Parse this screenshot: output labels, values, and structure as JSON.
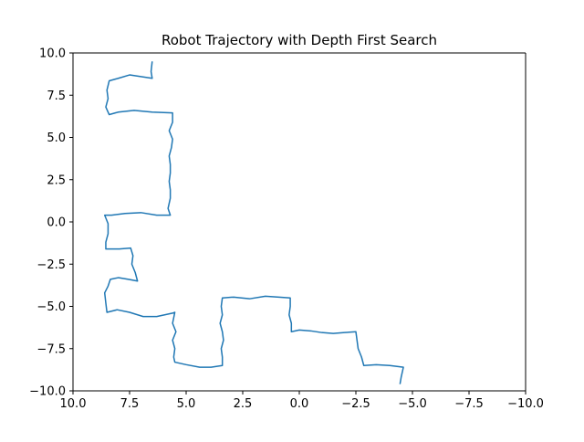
{
  "chart_data": {
    "type": "line",
    "title": "Robot Trajectory with Depth First Search",
    "xlabel": "",
    "ylabel": "",
    "xlim": [
      10.0,
      -10.0
    ],
    "ylim": [
      -10.0,
      10.0
    ],
    "xticks": [
      10.0,
      7.5,
      5.0,
      2.5,
      0.0,
      -2.5,
      -5.0,
      -7.5,
      -10.0
    ],
    "yticks": [
      10.0,
      7.5,
      5.0,
      2.5,
      0.0,
      -2.5,
      -5.0,
      -7.5,
      -10.0
    ],
    "xtick_labels": [
      "10.0",
      "7.5",
      "5.0",
      "2.5",
      "0.0",
      "−2.5",
      "−5.0",
      "−7.5",
      "−10.0"
    ],
    "ytick_labels": [
      "10.0",
      "7.5",
      "5.0",
      "2.5",
      "0.0",
      "−2.5",
      "−5.0",
      "−7.5",
      "−10.0"
    ],
    "grid": false,
    "series_color": "#1f77b4",
    "series": [
      {
        "points": [
          [
            6.5,
            9.5
          ],
          [
            6.55,
            8.9
          ],
          [
            6.5,
            8.5
          ],
          [
            7.0,
            8.6
          ],
          [
            7.5,
            8.7
          ],
          [
            8.0,
            8.5
          ],
          [
            8.4,
            8.35
          ],
          [
            8.5,
            7.8
          ],
          [
            8.45,
            7.3
          ],
          [
            8.55,
            6.8
          ],
          [
            8.4,
            6.35
          ],
          [
            8.0,
            6.5
          ],
          [
            7.3,
            6.6
          ],
          [
            6.5,
            6.5
          ],
          [
            5.6,
            6.45
          ],
          [
            5.6,
            5.9
          ],
          [
            5.75,
            5.4
          ],
          [
            5.6,
            4.9
          ],
          [
            5.65,
            4.4
          ],
          [
            5.75,
            3.9
          ],
          [
            5.7,
            3.4
          ],
          [
            5.7,
            2.9
          ],
          [
            5.75,
            2.4
          ],
          [
            5.7,
            1.9
          ],
          [
            5.7,
            1.4
          ],
          [
            5.8,
            0.8
          ],
          [
            5.7,
            0.4
          ],
          [
            6.3,
            0.4
          ],
          [
            7.0,
            0.55
          ],
          [
            7.7,
            0.5
          ],
          [
            8.3,
            0.4
          ],
          [
            8.6,
            0.4
          ],
          [
            8.45,
            -0.1
          ],
          [
            8.45,
            -0.7
          ],
          [
            8.55,
            -1.2
          ],
          [
            8.55,
            -1.6
          ],
          [
            7.95,
            -1.6
          ],
          [
            7.45,
            -1.55
          ],
          [
            7.35,
            -2.0
          ],
          [
            7.4,
            -2.5
          ],
          [
            7.25,
            -3.0
          ],
          [
            7.15,
            -3.5
          ],
          [
            7.55,
            -3.4
          ],
          [
            8.0,
            -3.3
          ],
          [
            8.35,
            -3.4
          ],
          [
            8.45,
            -3.8
          ],
          [
            8.6,
            -4.2
          ],
          [
            8.55,
            -4.8
          ],
          [
            8.5,
            -5.35
          ],
          [
            8.05,
            -5.2
          ],
          [
            7.5,
            -5.35
          ],
          [
            6.9,
            -5.6
          ],
          [
            6.3,
            -5.6
          ],
          [
            5.6,
            -5.4
          ],
          [
            5.5,
            -5.35
          ],
          [
            5.6,
            -6.0
          ],
          [
            5.45,
            -6.5
          ],
          [
            5.6,
            -7.0
          ],
          [
            5.5,
            -7.5
          ],
          [
            5.55,
            -8.0
          ],
          [
            5.5,
            -8.3
          ],
          [
            5.0,
            -8.45
          ],
          [
            4.4,
            -8.6
          ],
          [
            3.9,
            -8.6
          ],
          [
            3.4,
            -8.5
          ],
          [
            3.4,
            -8.0
          ],
          [
            3.45,
            -7.5
          ],
          [
            3.35,
            -7.0
          ],
          [
            3.4,
            -6.5
          ],
          [
            3.5,
            -6.0
          ],
          [
            3.4,
            -5.5
          ],
          [
            3.45,
            -5.0
          ],
          [
            3.4,
            -4.5
          ],
          [
            2.9,
            -4.45
          ],
          [
            2.2,
            -4.55
          ],
          [
            1.5,
            -4.4
          ],
          [
            0.9,
            -4.45
          ],
          [
            0.4,
            -4.5
          ],
          [
            0.4,
            -5.0
          ],
          [
            0.45,
            -5.5
          ],
          [
            0.35,
            -6.0
          ],
          [
            0.35,
            -6.5
          ],
          [
            0.0,
            -6.4
          ],
          [
            -0.5,
            -6.45
          ],
          [
            -1.0,
            -6.55
          ],
          [
            -1.5,
            -6.6
          ],
          [
            -2.0,
            -6.55
          ],
          [
            -2.5,
            -6.5
          ],
          [
            -2.55,
            -7.0
          ],
          [
            -2.6,
            -7.5
          ],
          [
            -2.75,
            -8.0
          ],
          [
            -2.85,
            -8.5
          ],
          [
            -3.4,
            -8.45
          ],
          [
            -4.0,
            -8.5
          ],
          [
            -4.6,
            -8.6
          ],
          [
            -4.5,
            -9.2
          ],
          [
            -4.45,
            -9.6
          ]
        ]
      }
    ]
  }
}
